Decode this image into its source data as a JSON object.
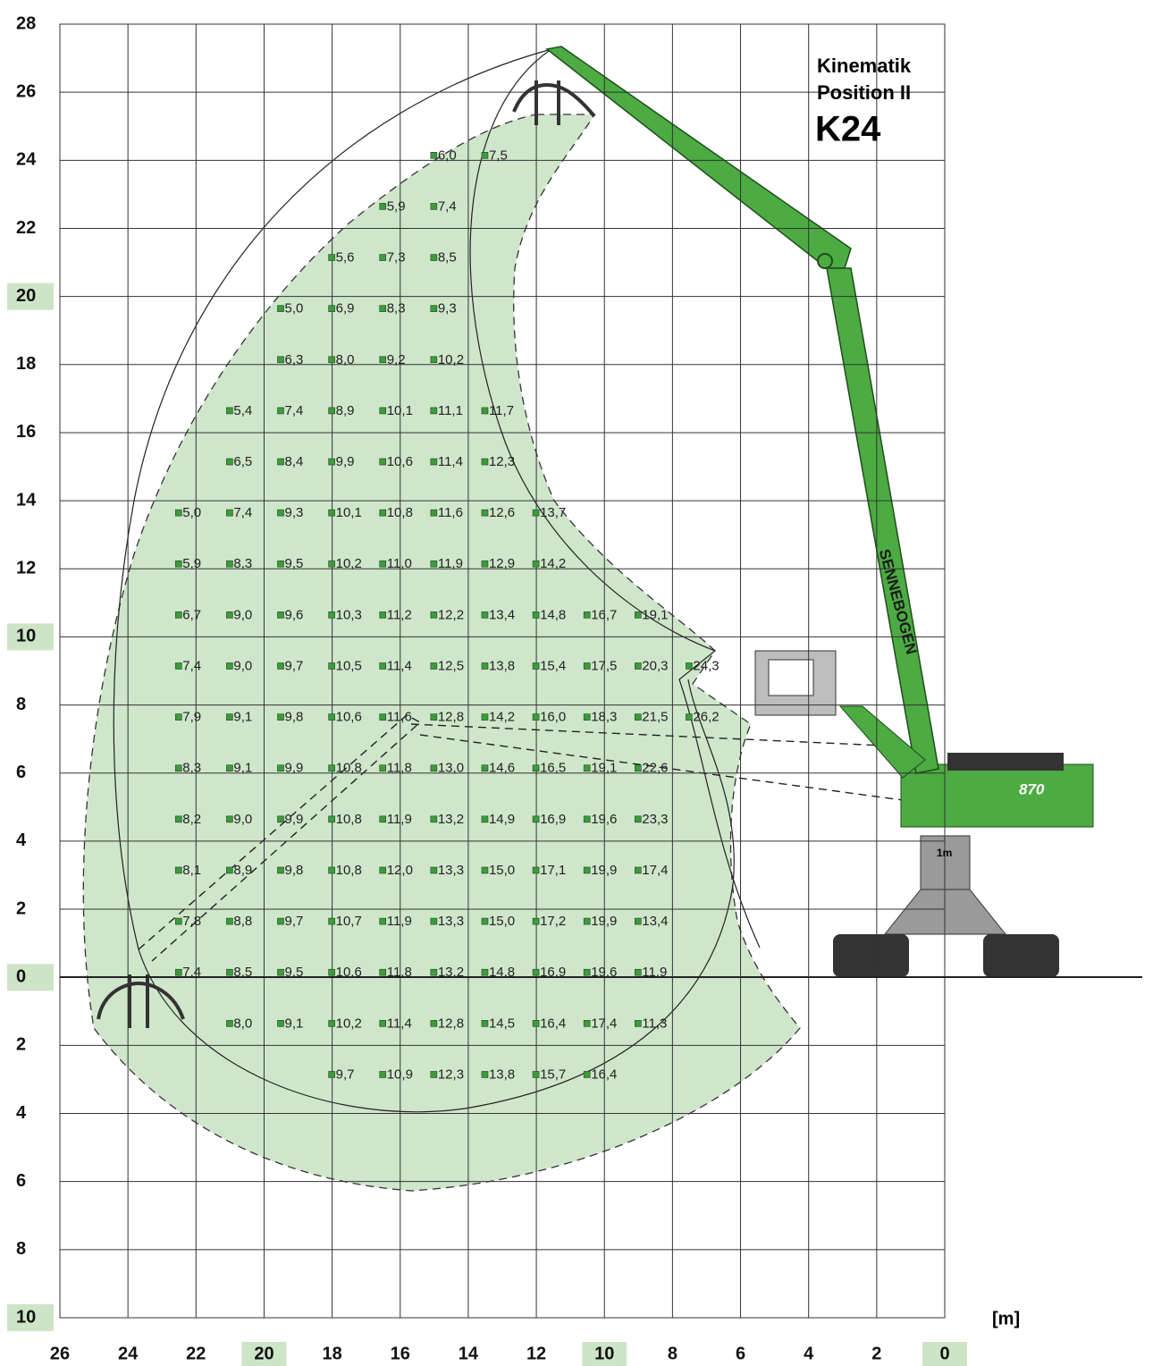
{
  "chart_data": {
    "type": "scatter",
    "title_lines": [
      "Kinematik",
      "Position II"
    ],
    "model": "K24",
    "unit_label": "[m]",
    "pedestal_label": "1m",
    "model_badge": "870",
    "brand": "SENNEBOGEN",
    "xlim": [
      26,
      0
    ],
    "ylim": [
      -10,
      28
    ],
    "xticks": [
      26,
      24,
      22,
      20,
      18,
      16,
      14,
      12,
      10,
      8,
      6,
      4,
      2,
      0
    ],
    "yticks": [
      28,
      26,
      24,
      22,
      20,
      18,
      16,
      14,
      12,
      10,
      8,
      6,
      4,
      2,
      0,
      {
        "value": -2,
        "label": "2"
      },
      {
        "value": -4,
        "label": "4"
      },
      {
        "value": -6,
        "label": "6"
      },
      {
        "value": -8,
        "label": "8"
      },
      {
        "value": -10,
        "label": "10"
      }
    ],
    "grid": true,
    "highlight_every": 10,
    "highlight_color": "#cde5c6",
    "marker_color": "#3e9a3e",
    "series": [
      {
        "y": 24,
        "x": [
          15,
          13.5
        ],
        "values": [
          6.0,
          7.5
        ],
        "value_labels": [
          "6,0",
          "7,5"
        ]
      },
      {
        "y": 22.5,
        "x": [
          16.5,
          15
        ],
        "values": [
          5.9,
          7.4
        ],
        "value_labels": [
          "5,9",
          "7,4"
        ]
      },
      {
        "y": 21,
        "x": [
          18,
          16.5,
          15
        ],
        "values": [
          5.6,
          7.3,
          8.5
        ],
        "value_labels": [
          "5,6",
          "7,3",
          "8,5"
        ]
      },
      {
        "y": 19.5,
        "x": [
          19.5,
          18,
          16.5,
          15
        ],
        "values": [
          5.0,
          6.9,
          8.3,
          9.3
        ],
        "value_labels": [
          "5,0",
          "6,9",
          "8,3",
          "9,3"
        ]
      },
      {
        "y": 18,
        "x": [
          19.5,
          18,
          16.5,
          15
        ],
        "values": [
          6.3,
          8.0,
          9.2,
          10.2
        ],
        "value_labels": [
          "6,3",
          "8,0",
          "9,2",
          "10,2"
        ]
      },
      {
        "y": 16.5,
        "x": [
          21,
          19.5,
          18,
          16.5,
          15,
          13.5
        ],
        "values": [
          5.4,
          7.4,
          8.9,
          10.1,
          11.1,
          11.7
        ],
        "value_labels": [
          "5,4",
          "7,4",
          "8,9",
          "10,1",
          "11,1",
          "11,7"
        ]
      },
      {
        "y": 15,
        "x": [
          21,
          19.5,
          18,
          16.5,
          15,
          13.5
        ],
        "values": [
          6.5,
          8.4,
          9.9,
          10.6,
          11.4,
          12.3
        ],
        "value_labels": [
          "6,5",
          "8,4",
          "9,9",
          "10,6",
          "11,4",
          "12,3"
        ]
      },
      {
        "y": 13.5,
        "x": [
          22.5,
          21,
          19.5,
          18,
          16.5,
          15,
          13.5,
          12
        ],
        "values": [
          5.0,
          7.4,
          9.3,
          10.1,
          10.8,
          11.6,
          12.6,
          13.7
        ],
        "value_labels": [
          "5,0",
          "7,4",
          "9,3",
          "10,1",
          "10,8",
          "11,6",
          "12,6",
          "13,7"
        ]
      },
      {
        "y": 12,
        "x": [
          22.5,
          21,
          19.5,
          18,
          16.5,
          15,
          13.5,
          12
        ],
        "values": [
          5.9,
          8.3,
          9.5,
          10.2,
          11.0,
          11.9,
          12.9,
          14.2
        ],
        "value_labels": [
          "5,9",
          "8,3",
          "9,5",
          "10,2",
          "11,0",
          "11,9",
          "12,9",
          "14,2"
        ]
      },
      {
        "y": 10.5,
        "x": [
          22.5,
          21,
          19.5,
          18,
          16.5,
          15,
          13.5,
          12,
          10.5,
          9
        ],
        "values": [
          6.7,
          9.0,
          9.6,
          10.3,
          11.2,
          12.2,
          13.4,
          14.8,
          16.7,
          19.1
        ],
        "value_labels": [
          "6,7",
          "9,0",
          "9,6",
          "10,3",
          "11,2",
          "12,2",
          "13,4",
          "14,8",
          "16,7",
          "19,1"
        ]
      },
      {
        "y": 9,
        "x": [
          22.5,
          21,
          19.5,
          18,
          16.5,
          15,
          13.5,
          12,
          10.5,
          9,
          7.5
        ],
        "values": [
          7.4,
          9.0,
          9.7,
          10.5,
          11.4,
          12.5,
          13.8,
          15.4,
          17.5,
          20.3,
          24.3
        ],
        "value_labels": [
          "7,4",
          "9,0",
          "9,7",
          "10,5",
          "11,4",
          "12,5",
          "13,8",
          "15,4",
          "17,5",
          "20,3",
          "24,3"
        ]
      },
      {
        "y": 7.5,
        "x": [
          22.5,
          21,
          19.5,
          18,
          16.5,
          15,
          13.5,
          12,
          10.5,
          9,
          7.5
        ],
        "values": [
          7.9,
          9.1,
          9.8,
          10.6,
          11.6,
          12.8,
          14.2,
          16.0,
          18.3,
          21.5,
          26.2
        ],
        "value_labels": [
          "7,9",
          "9,1",
          "9,8",
          "10,6",
          "11,6",
          "12,8",
          "14,2",
          "16,0",
          "18,3",
          "21,5",
          "26,2"
        ]
      },
      {
        "y": 6,
        "x": [
          22.5,
          21,
          19.5,
          18,
          16.5,
          15,
          13.5,
          12,
          10.5,
          9
        ],
        "values": [
          8.3,
          9.1,
          9.9,
          10.8,
          11.8,
          13.0,
          14.6,
          16.5,
          19.1,
          22.6
        ],
        "value_labels": [
          "8,3",
          "9,1",
          "9,9",
          "10,8",
          "11,8",
          "13,0",
          "14,6",
          "16,5",
          "19,1",
          "22,6"
        ]
      },
      {
        "y": 4.5,
        "x": [
          22.5,
          21,
          19.5,
          18,
          16.5,
          15,
          13.5,
          12,
          10.5,
          9
        ],
        "values": [
          8.2,
          9.0,
          9.9,
          10.8,
          11.9,
          13.2,
          14.9,
          16.9,
          19.6,
          23.3
        ],
        "value_labels": [
          "8,2",
          "9,0",
          "9,9",
          "10,8",
          "11,9",
          "13,2",
          "14,9",
          "16,9",
          "19,6",
          "23,3"
        ]
      },
      {
        "y": 3,
        "x": [
          22.5,
          21,
          19.5,
          18,
          16.5,
          15,
          13.5,
          12,
          10.5,
          9
        ],
        "values": [
          8.1,
          8.9,
          9.8,
          10.8,
          12.0,
          13.3,
          15.0,
          17.1,
          19.9,
          17.4
        ],
        "value_labels": [
          "8,1",
          "8,9",
          "9,8",
          "10,8",
          "12,0",
          "13,3",
          "15,0",
          "17,1",
          "19,9",
          "17,4"
        ]
      },
      {
        "y": 1.5,
        "x": [
          22.5,
          21,
          19.5,
          18,
          16.5,
          15,
          13.5,
          12,
          10.5,
          9
        ],
        "values": [
          7.8,
          8.8,
          9.7,
          10.7,
          11.9,
          13.3,
          15.0,
          17.2,
          19.9,
          13.4
        ],
        "value_labels": [
          "7,8",
          "8,8",
          "9,7",
          "10,7",
          "11,9",
          "13,3",
          "15,0",
          "17,2",
          "19,9",
          "13,4"
        ]
      },
      {
        "y": 0,
        "x": [
          22.5,
          21,
          19.5,
          18,
          16.5,
          15,
          13.5,
          12,
          10.5,
          9
        ],
        "values": [
          7.4,
          8.5,
          9.5,
          10.6,
          11.8,
          13.2,
          14.8,
          16.9,
          19.6,
          11.9
        ],
        "value_labels": [
          "7,4",
          "8,5",
          "9,5",
          "10,6",
          "11,8",
          "13,2",
          "14,8",
          "16,9",
          "19,6",
          "11,9"
        ]
      },
      {
        "y": -1.5,
        "x": [
          21,
          19.5,
          18,
          16.5,
          15,
          13.5,
          12,
          10.5,
          9
        ],
        "values": [
          8.0,
          9.1,
          10.2,
          11.4,
          12.8,
          14.5,
          16.4,
          17.4,
          11.3
        ],
        "value_labels": [
          "8,0",
          "9,1",
          "10,2",
          "11,4",
          "12,8",
          "14,5",
          "16,4",
          "17,4",
          "11,3"
        ]
      },
      {
        "y": -3,
        "x": [
          18,
          16.5,
          15,
          13.5,
          12,
          10.5
        ],
        "values": [
          9.7,
          10.9,
          12.3,
          13.8,
          15.7,
          16.4
        ],
        "value_labels": [
          "9,7",
          "10,9",
          "12,3",
          "13,8",
          "15,7",
          "16,4"
        ]
      }
    ]
  }
}
